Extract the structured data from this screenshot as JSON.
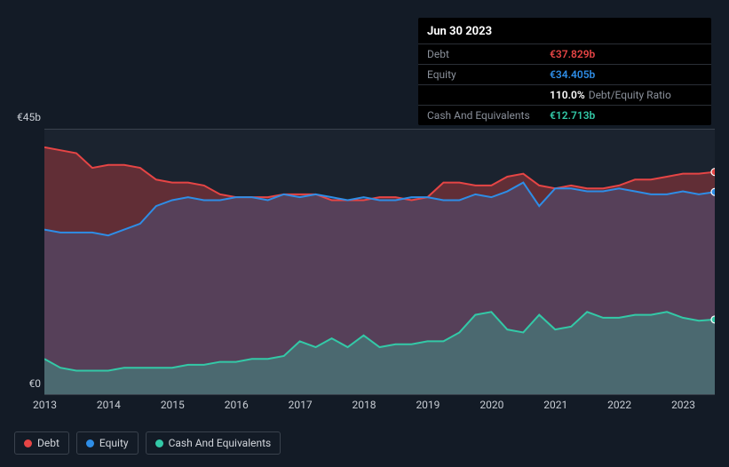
{
  "tooltip": {
    "date": "Jun 30 2023",
    "rows": [
      {
        "label": "Debt",
        "value": "€37.829b",
        "color": "#e64545"
      },
      {
        "label": "Equity",
        "value": "€34.405b",
        "color": "#2e8de6"
      },
      {
        "label": "",
        "value": "110.0%",
        "extra": "Debt/Equity Ratio",
        "color": "#ffffff"
      },
      {
        "label": "Cash And Equivalents",
        "value": "€12.713b",
        "color": "#33c9a7"
      }
    ]
  },
  "chart": {
    "type": "area",
    "background_color": "#131b26",
    "plot_background": "#1b232f",
    "grid_color": "#3a424d",
    "ymax_label": "€45b",
    "ymin_label": "€0",
    "ylim": [
      0,
      45
    ],
    "xlabels": [
      "2013",
      "2014",
      "2015",
      "2016",
      "2017",
      "2018",
      "2019",
      "2020",
      "2021",
      "2022",
      "2023"
    ],
    "xrange": [
      2013,
      2023.5
    ],
    "series": {
      "debt": {
        "color_line": "#e64545",
        "color_fill": "rgba(230,69,69,0.35)",
        "values": [
          [
            2013.0,
            42
          ],
          [
            2013.25,
            41.5
          ],
          [
            2013.5,
            41
          ],
          [
            2013.75,
            38.5
          ],
          [
            2014.0,
            39
          ],
          [
            2014.25,
            39
          ],
          [
            2014.5,
            38.5
          ],
          [
            2014.75,
            36.5
          ],
          [
            2015.0,
            36
          ],
          [
            2015.25,
            36
          ],
          [
            2015.5,
            35.5
          ],
          [
            2015.75,
            34
          ],
          [
            2016.0,
            33.5
          ],
          [
            2016.25,
            33.5
          ],
          [
            2016.5,
            33.5
          ],
          [
            2016.75,
            34
          ],
          [
            2017.0,
            34
          ],
          [
            2017.25,
            34
          ],
          [
            2017.5,
            33
          ],
          [
            2017.75,
            33
          ],
          [
            2018.0,
            33
          ],
          [
            2018.25,
            33.5
          ],
          [
            2018.5,
            33.5
          ],
          [
            2018.75,
            33
          ],
          [
            2019.0,
            33.5
          ],
          [
            2019.25,
            36
          ],
          [
            2019.5,
            36
          ],
          [
            2019.75,
            35.5
          ],
          [
            2020.0,
            35.5
          ],
          [
            2020.25,
            37
          ],
          [
            2020.5,
            37.5
          ],
          [
            2020.75,
            35.5
          ],
          [
            2021.0,
            35
          ],
          [
            2021.25,
            35.5
          ],
          [
            2021.5,
            35
          ],
          [
            2021.75,
            35
          ],
          [
            2022.0,
            35.5
          ],
          [
            2022.25,
            36.5
          ],
          [
            2022.5,
            36.5
          ],
          [
            2022.75,
            37
          ],
          [
            2023.0,
            37.5
          ],
          [
            2023.25,
            37.5
          ],
          [
            2023.5,
            37.8
          ]
        ]
      },
      "equity": {
        "color_line": "#2e8de6",
        "color_fill": "rgba(46,141,230,0.20)",
        "values": [
          [
            2013.0,
            28
          ],
          [
            2013.25,
            27.5
          ],
          [
            2013.5,
            27.5
          ],
          [
            2013.75,
            27.5
          ],
          [
            2014.0,
            27
          ],
          [
            2014.25,
            28
          ],
          [
            2014.5,
            29
          ],
          [
            2014.75,
            32
          ],
          [
            2015.0,
            33
          ],
          [
            2015.25,
            33.5
          ],
          [
            2015.5,
            33
          ],
          [
            2015.75,
            33
          ],
          [
            2016.0,
            33.5
          ],
          [
            2016.25,
            33.5
          ],
          [
            2016.5,
            33
          ],
          [
            2016.75,
            34
          ],
          [
            2017.0,
            33.5
          ],
          [
            2017.25,
            34
          ],
          [
            2017.5,
            33.5
          ],
          [
            2017.75,
            33
          ],
          [
            2018.0,
            33.5
          ],
          [
            2018.25,
            33
          ],
          [
            2018.5,
            33
          ],
          [
            2018.75,
            33.5
          ],
          [
            2019.0,
            33.5
          ],
          [
            2019.25,
            33
          ],
          [
            2019.5,
            33
          ],
          [
            2019.75,
            34
          ],
          [
            2020.0,
            33.5
          ],
          [
            2020.25,
            34.5
          ],
          [
            2020.5,
            36
          ],
          [
            2020.75,
            32
          ],
          [
            2021.0,
            35
          ],
          [
            2021.25,
            35
          ],
          [
            2021.5,
            34.5
          ],
          [
            2021.75,
            34.5
          ],
          [
            2022.0,
            35
          ],
          [
            2022.25,
            34.5
          ],
          [
            2022.5,
            34
          ],
          [
            2022.75,
            34
          ],
          [
            2023.0,
            34.5
          ],
          [
            2023.25,
            34
          ],
          [
            2023.5,
            34.4
          ]
        ]
      },
      "cash": {
        "color_line": "#33c9a7",
        "color_fill": "rgba(51,201,167,0.30)",
        "values": [
          [
            2013.0,
            6
          ],
          [
            2013.25,
            4.5
          ],
          [
            2013.5,
            4
          ],
          [
            2013.75,
            4
          ],
          [
            2014.0,
            4
          ],
          [
            2014.25,
            4.5
          ],
          [
            2014.5,
            4.5
          ],
          [
            2014.75,
            4.5
          ],
          [
            2015.0,
            4.5
          ],
          [
            2015.25,
            5
          ],
          [
            2015.5,
            5
          ],
          [
            2015.75,
            5.5
          ],
          [
            2016.0,
            5.5
          ],
          [
            2016.25,
            6
          ],
          [
            2016.5,
            6
          ],
          [
            2016.75,
            6.5
          ],
          [
            2017.0,
            9
          ],
          [
            2017.25,
            8
          ],
          [
            2017.5,
            9.5
          ],
          [
            2017.75,
            8
          ],
          [
            2018.0,
            10
          ],
          [
            2018.25,
            8
          ],
          [
            2018.5,
            8.5
          ],
          [
            2018.75,
            8.5
          ],
          [
            2019.0,
            9
          ],
          [
            2019.25,
            9
          ],
          [
            2019.5,
            10.5
          ],
          [
            2019.75,
            13.5
          ],
          [
            2020.0,
            14
          ],
          [
            2020.25,
            11
          ],
          [
            2020.5,
            10.5
          ],
          [
            2020.75,
            13.5
          ],
          [
            2021.0,
            11
          ],
          [
            2021.25,
            11.5
          ],
          [
            2021.5,
            14
          ],
          [
            2021.75,
            13
          ],
          [
            2022.0,
            13
          ],
          [
            2022.25,
            13.5
          ],
          [
            2022.5,
            13.5
          ],
          [
            2022.75,
            14
          ],
          [
            2023.0,
            13
          ],
          [
            2023.25,
            12.5
          ],
          [
            2023.5,
            12.7
          ]
        ]
      }
    },
    "end_markers": [
      {
        "color": "#e64545"
      },
      {
        "color": "#2e8de6"
      },
      {
        "color": "#33c9a7"
      }
    ]
  },
  "legend": [
    {
      "label": "Debt",
      "color": "#e64545"
    },
    {
      "label": "Equity",
      "color": "#2e8de6"
    },
    {
      "label": "Cash And Equivalents",
      "color": "#33c9a7"
    }
  ]
}
